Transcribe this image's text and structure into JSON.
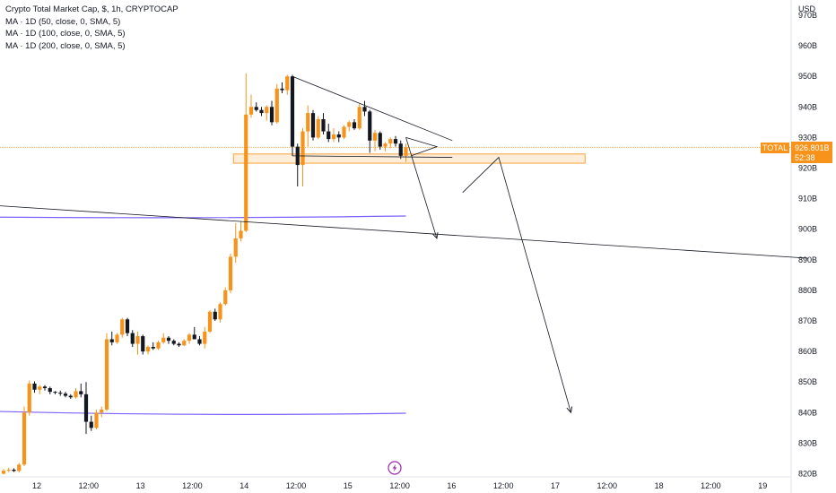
{
  "legend": {
    "title": "Crypto Total Market Cap, $, 1h, CRYPTOCAP",
    "ma50": "MA · 1D (50, close, 0, SMA, 5)",
    "ma100": "MA · 1D (100, close, 0, SMA, 5)",
    "ma200": "MA · 1D (200, close, 0, SMA, 5)"
  },
  "price_tag": {
    "symbol": "TOTAL",
    "price": "926.801B",
    "countdown": "52:38",
    "color": "#f7931a"
  },
  "colors": {
    "up": "#f7931a",
    "down": "#131722",
    "ma": "#7b61ff",
    "drawing": "#131722",
    "zone_fill": "#fde9cf",
    "zone_border": "#f7a23a"
  },
  "bottom_icon": "lightning-icon",
  "chart_data": {
    "type": "candlestick",
    "unit": "USD",
    "ylim": [
      816,
      972
    ],
    "yticks": [
      "820B",
      "830B",
      "840B",
      "850B",
      "860B",
      "870B",
      "880B",
      "890B",
      "900B",
      "910B",
      "920B",
      "930B",
      "940B",
      "950B",
      "960B",
      "970B"
    ],
    "xticks": [
      "12",
      "12:00",
      "13",
      "12:00",
      "14",
      "12:00",
      "15",
      "12:00",
      "16",
      "12:00",
      "17",
      "12:00",
      "18",
      "12:00",
      "19"
    ],
    "x_start": "Dec 11 18:00",
    "interval": "1h",
    "last_price": 926.801,
    "candles": [
      [
        820.0,
        821.5,
        819.8,
        821.0
      ],
      [
        821.0,
        822.0,
        820.5,
        821.3
      ],
      [
        821.3,
        821.8,
        820.6,
        820.9
      ],
      [
        820.9,
        823.5,
        820.5,
        823.0
      ],
      [
        823.0,
        842.0,
        822.5,
        840.0
      ],
      [
        840.0,
        850.5,
        839.0,
        849.5
      ],
      [
        849.5,
        850.2,
        846.5,
        847.5
      ],
      [
        847.5,
        849.0,
        846.0,
        848.5
      ],
      [
        848.5,
        849.0,
        847.2,
        848.0
      ],
      [
        848.0,
        848.5,
        846.0,
        846.8
      ],
      [
        846.8,
        847.0,
        846.0,
        846.5
      ],
      [
        846.5,
        847.2,
        845.5,
        846.2
      ],
      [
        846.2,
        846.8,
        845.0,
        845.5
      ],
      [
        845.5,
        846.0,
        844.5,
        845.0
      ],
      [
        845.0,
        848.0,
        844.6,
        847.0
      ],
      [
        847.0,
        849.5,
        845.0,
        846.0
      ],
      [
        846.0,
        850.0,
        833.0,
        837.0
      ],
      [
        837.0,
        839.0,
        834.0,
        835.0
      ],
      [
        835.0,
        841.0,
        834.5,
        840.0
      ],
      [
        840.0,
        842.0,
        838.5,
        841.0
      ],
      [
        841.0,
        866.0,
        840.5,
        864.0
      ],
      [
        864.0,
        866.5,
        862.0,
        863.0
      ],
      [
        863.0,
        866.0,
        862.5,
        865.5
      ],
      [
        865.5,
        871.0,
        864.5,
        870.5
      ],
      [
        870.5,
        871.0,
        865.0,
        866.0
      ],
      [
        866.0,
        867.0,
        861.5,
        862.5
      ],
      [
        862.5,
        866.5,
        859.0,
        865.0
      ],
      [
        865.0,
        865.5,
        859.0,
        860.0
      ],
      [
        860.0,
        862.0,
        859.0,
        861.5
      ],
      [
        861.5,
        863.0,
        860.5,
        861.0
      ],
      [
        861.0,
        863.5,
        860.5,
        863.0
      ],
      [
        863.0,
        866.0,
        862.5,
        864.5
      ],
      [
        864.5,
        865.0,
        862.5,
        863.5
      ],
      [
        863.5,
        864.0,
        862.0,
        862.5
      ],
      [
        862.5,
        863.0,
        861.5,
        862.0
      ],
      [
        862.0,
        864.0,
        861.8,
        863.5
      ],
      [
        863.5,
        866.0,
        862.5,
        865.5
      ],
      [
        865.5,
        868.0,
        864.0,
        864.0
      ],
      [
        864.0,
        865.0,
        862.0,
        862.5
      ],
      [
        862.5,
        868.0,
        861.0,
        866.5
      ],
      [
        866.5,
        873.5,
        866.0,
        873.0
      ],
      [
        873.0,
        874.0,
        870.0,
        870.5
      ],
      [
        870.5,
        876.0,
        869.5,
        875.5
      ],
      [
        875.5,
        881.0,
        875.0,
        880.0
      ],
      [
        880.0,
        892.0,
        879.0,
        891.0
      ],
      [
        891.0,
        902.0,
        889.0,
        897.0
      ],
      [
        897.0,
        902.5,
        896.0,
        899.5
      ],
      [
        899.5,
        951.0,
        899.0,
        937.5
      ],
      [
        937.5,
        944.0,
        936.5,
        940.0
      ],
      [
        940.0,
        941.5,
        938.5,
        939.0
      ],
      [
        939.0,
        940.0,
        937.0,
        938.0
      ],
      [
        938.0,
        940.5,
        935.5,
        940.0
      ],
      [
        940.0,
        942.0,
        934.0,
        935.0
      ],
      [
        935.0,
        947.5,
        934.5,
        946.0
      ],
      [
        946.0,
        948.0,
        944.5,
        945.5
      ],
      [
        945.5,
        950.5,
        944.0,
        950.0
      ],
      [
        950.0,
        950.5,
        924.0,
        927.0
      ],
      [
        927.0,
        928.0,
        914.0,
        921.0
      ],
      [
        921.0,
        933.0,
        914.0,
        932.0
      ],
      [
        932.0,
        940.5,
        927.0,
        938.0
      ],
      [
        938.0,
        939.0,
        929.0,
        930.0
      ],
      [
        930.0,
        937.0,
        929.5,
        936.0
      ],
      [
        936.0,
        938.0,
        931.0,
        932.0
      ],
      [
        932.0,
        934.5,
        928.5,
        929.5
      ],
      [
        929.5,
        933.0,
        928.5,
        931.0
      ],
      [
        931.0,
        932.0,
        928.5,
        930.0
      ],
      [
        930.0,
        934.0,
        929.5,
        933.5
      ],
      [
        933.5,
        935.5,
        932.0,
        935.0
      ],
      [
        935.0,
        936.0,
        932.5,
        933.0
      ],
      [
        933.0,
        941.0,
        932.5,
        940.0
      ],
      [
        940.0,
        942.0,
        937.0,
        938.5
      ],
      [
        938.5,
        939.0,
        925.0,
        929.0
      ],
      [
        929.0,
        932.5,
        925.5,
        931.5
      ],
      [
        931.5,
        932.0,
        926.0,
        927.0
      ],
      [
        927.0,
        928.5,
        925.5,
        928.0
      ],
      [
        928.0,
        930.0,
        926.5,
        929.5
      ],
      [
        929.5,
        930.5,
        927.0,
        928.0
      ],
      [
        928.0,
        929.0,
        923.0,
        924.0
      ],
      [
        924.0,
        928.0,
        922.0,
        926.8
      ]
    ],
    "ma_lines": [
      {
        "label": "MA · 1D (50, close, 0, SMA, 5)",
        "start": [
          -4,
          904.0
        ],
        "end": [
          78,
          904.3
        ],
        "mid": 903.4
      },
      {
        "label": "MA · 1D (200, close, 0, SMA, 5)",
        "start": [
          -4,
          840.5
        ],
        "end": [
          78,
          839.8
        ],
        "mid": 838.7
      }
    ],
    "drawings": {
      "trendline_top": [
        [
          56,
          950.0
        ],
        [
          87,
          929.0
        ]
      ],
      "trendline_bottom": [
        [
          56,
          924.0
        ],
        [
          87,
          923.5
        ]
      ],
      "long_trendline": [
        [
          -4,
          908.0
        ],
        [
          156,
          890.5
        ]
      ],
      "zone": {
        "from": 47,
        "to": 111,
        "top": 924.6,
        "bottom": 921.6
      },
      "price_line": 926.801,
      "path_up": [
        [
          79,
          924.0
        ],
        [
          84,
          927.0
        ],
        [
          78,
          930.0
        ]
      ],
      "path_arrow1": [
        [
          78,
          930.0
        ],
        [
          84,
          897.0
        ]
      ],
      "path_arrow2": [
        [
          89,
          912.0
        ],
        [
          96,
          923.5
        ],
        [
          110,
          840.0
        ]
      ]
    }
  }
}
